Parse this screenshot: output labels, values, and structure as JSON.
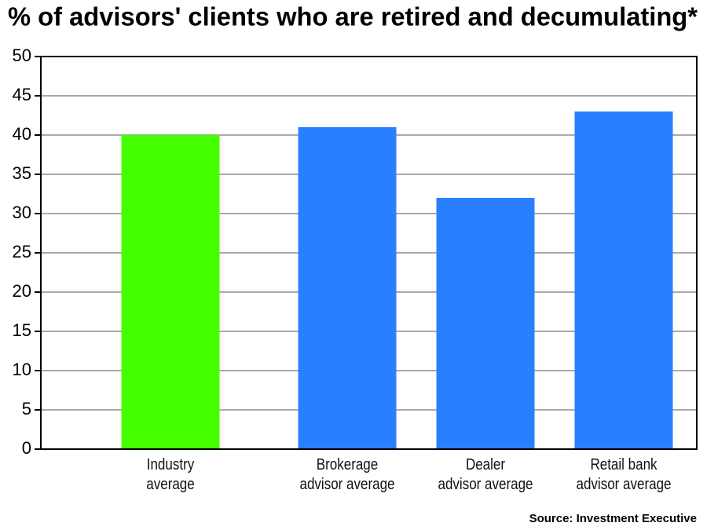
{
  "chart_data": {
    "type": "bar",
    "title": "% of advisors' clients who are retired and decumulating*",
    "categories": [
      "Industry\naverage",
      "Brokerage\nadvisor average",
      "Dealer\nadvisor average",
      "Retail bank\nadvisor average"
    ],
    "values": [
      40,
      41,
      32,
      43
    ],
    "colors": [
      "#44ff00",
      "#2a7fff",
      "#2a7fff",
      "#2a7fff"
    ],
    "ylim": [
      0,
      50
    ],
    "yticks": [
      0,
      5,
      10,
      15,
      20,
      25,
      30,
      35,
      40,
      45,
      50
    ],
    "grid": true,
    "source": "Source: Investment Executive"
  }
}
